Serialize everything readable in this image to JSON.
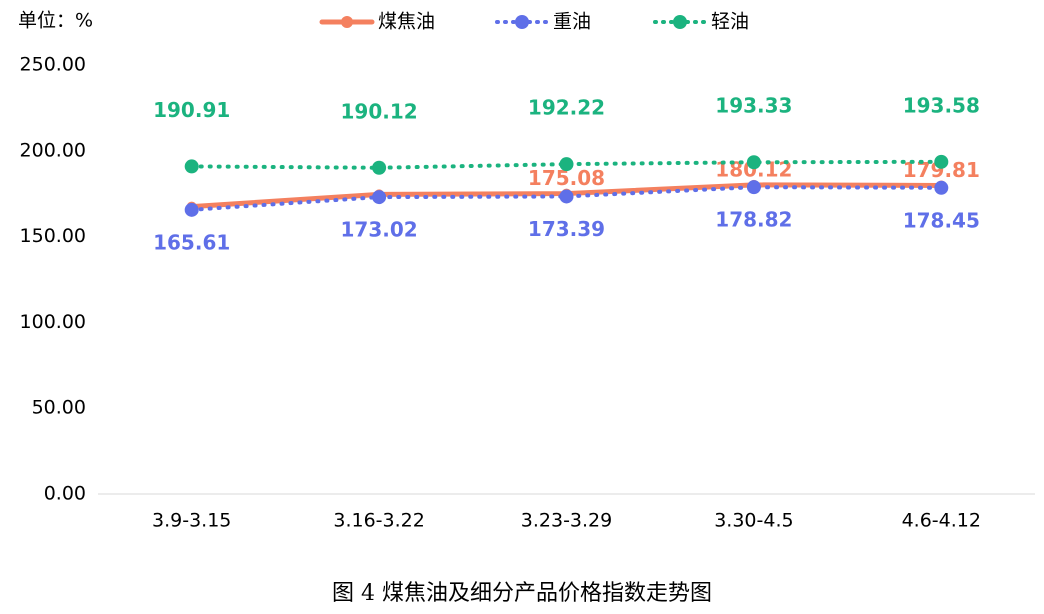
{
  "chart_data": {
    "type": "line",
    "unit_label": "单位：%",
    "caption": "图 4  煤焦油及细分产品价格指数走势图",
    "categories": [
      "3.9-3.15",
      "3.16-3.22",
      "3.23-3.29",
      "3.30-4.5",
      "4.6-4.12"
    ],
    "series": [
      {
        "name": "煤焦油",
        "color": "#f4805f",
        "style": "solid",
        "values": [
          167.5,
          174.6,
          175.08,
          180.12,
          179.81
        ],
        "value_labels": [
          null,
          null,
          "175.08",
          "180.12",
          "179.81"
        ]
      },
      {
        "name": "重油",
        "color": "#5f6fe8",
        "style": "dotted",
        "values": [
          165.61,
          173.02,
          173.39,
          178.82,
          178.45
        ]
      },
      {
        "name": "轻油",
        "color": "#1bb37f",
        "style": "dotted",
        "values": [
          190.91,
          190.12,
          192.22,
          193.33,
          193.58
        ]
      }
    ],
    "ylim": [
      0,
      250
    ],
    "yticks": [
      {
        "value": 0,
        "label": "0.00"
      },
      {
        "value": 50,
        "label": "50.00"
      },
      {
        "value": 100,
        "label": "100.00"
      },
      {
        "value": 150,
        "label": "150.00"
      },
      {
        "value": 200,
        "label": "200.00"
      },
      {
        "value": 250,
        "label": "250.00"
      }
    ],
    "legend": "top"
  }
}
